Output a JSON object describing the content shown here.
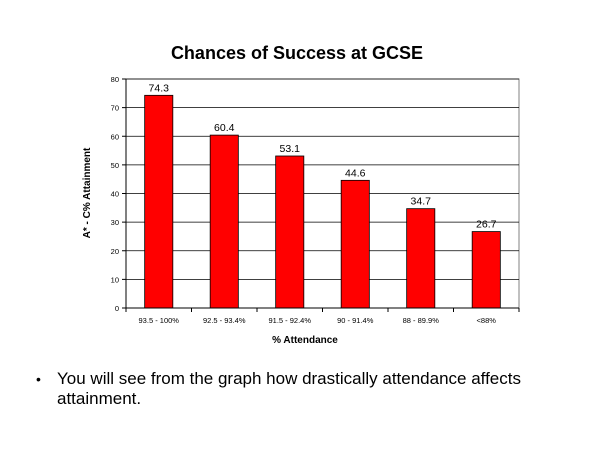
{
  "chart_data": {
    "type": "bar",
    "title": "Chances of Success at GCSE",
    "xlabel": "% Attendance",
    "ylabel": "A* - C% Attainment",
    "categories": [
      "93.5 - 100%",
      "92.5 - 93.4%",
      "91.5 - 92.4%",
      "90 - 91.4%",
      "88 - 89.9%",
      "<88%"
    ],
    "values": [
      74.3,
      60.4,
      53.1,
      44.6,
      34.7,
      26.7
    ],
    "data_labels": [
      "74.3",
      "60.4",
      "53.1",
      "44.6",
      "34.7",
      "26.7"
    ],
    "ylim": [
      0,
      80
    ],
    "yticks": [
      0,
      10,
      20,
      30,
      40,
      50,
      60,
      70,
      80
    ],
    "grid": true,
    "legend": "none",
    "bar_color": "#ff0000"
  },
  "slide": {
    "bullet_symbol": "•",
    "bullet_text": "You will see from the graph how drastically attendance affects attainment."
  }
}
